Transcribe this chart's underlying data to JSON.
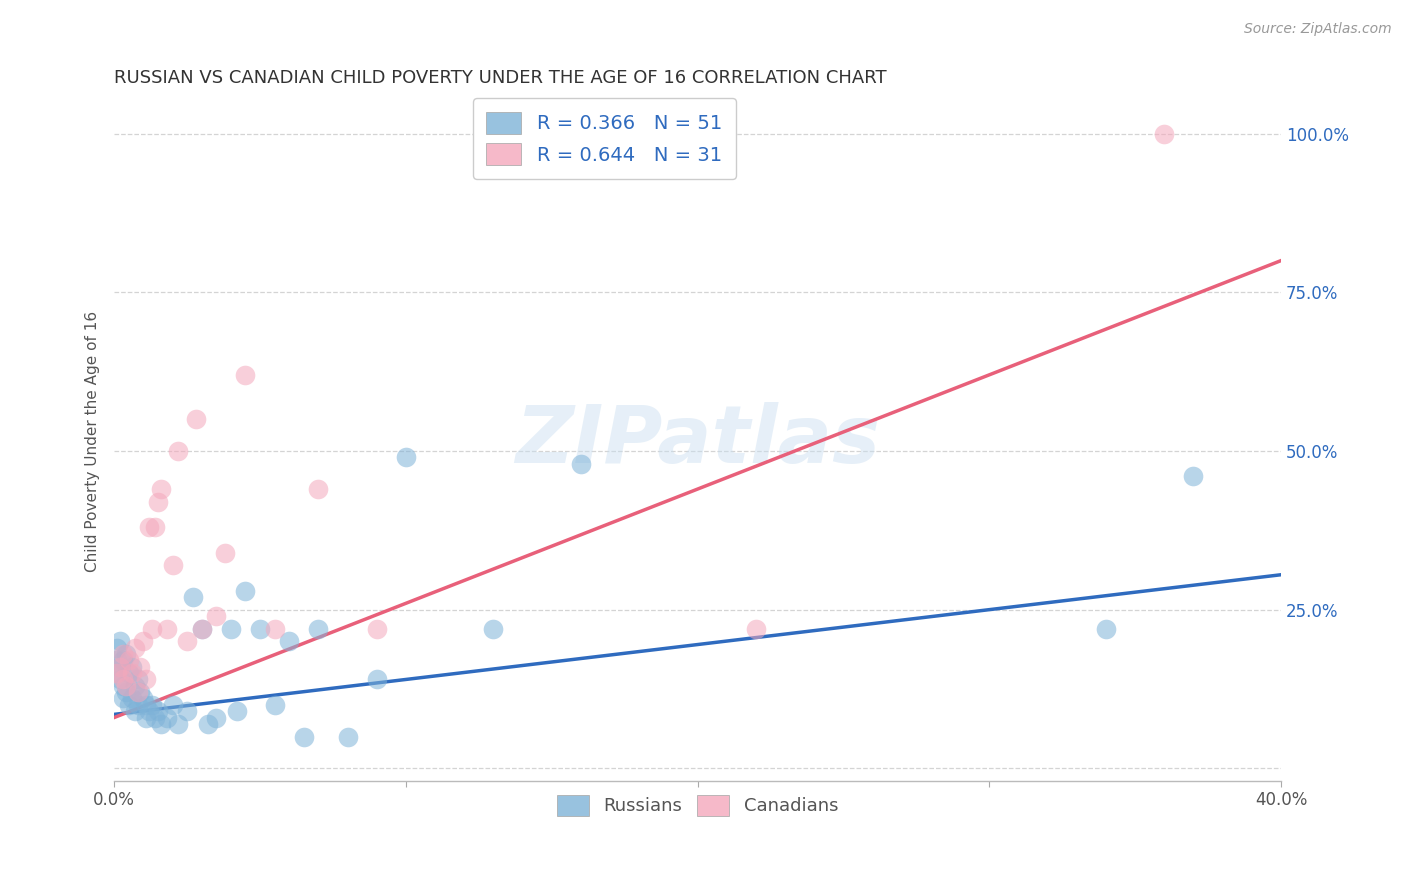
{
  "title": "RUSSIAN VS CANADIAN CHILD POVERTY UNDER THE AGE OF 16 CORRELATION CHART",
  "source": "Source: ZipAtlas.com",
  "ylabel": "Child Poverty Under the Age of 16",
  "xlim": [
    0.0,
    0.4
  ],
  "ylim": [
    -0.02,
    1.05
  ],
  "xticks": [
    0.0,
    0.1,
    0.2,
    0.3,
    0.4
  ],
  "xticklabels": [
    "0.0%",
    "",
    "",
    "",
    "40.0%"
  ],
  "yticks": [
    0.0,
    0.25,
    0.5,
    0.75,
    1.0
  ],
  "yticklabels": [
    "",
    "25.0%",
    "50.0%",
    "75.0%",
    "100.0%"
  ],
  "russian_color": "#7fb3d8",
  "canadian_color": "#f4a8bc",
  "russian_line_color": "#2f6bbf",
  "canadian_line_color": "#e8607a",
  "watermark": "ZIPatlas",
  "background_color": "#ffffff",
  "grid_color": "#d0d0d0",
  "title_fontsize": 13,
  "axis_label_fontsize": 11,
  "tick_fontsize": 12,
  "marker_size": 200,
  "russians_x": [
    0.001,
    0.001,
    0.001,
    0.002,
    0.002,
    0.002,
    0.003,
    0.003,
    0.003,
    0.004,
    0.004,
    0.005,
    0.005,
    0.006,
    0.006,
    0.007,
    0.007,
    0.008,
    0.008,
    0.009,
    0.01,
    0.011,
    0.011,
    0.012,
    0.013,
    0.014,
    0.015,
    0.016,
    0.018,
    0.02,
    0.022,
    0.025,
    0.027,
    0.03,
    0.032,
    0.035,
    0.04,
    0.042,
    0.045,
    0.05,
    0.055,
    0.06,
    0.065,
    0.07,
    0.08,
    0.09,
    0.1,
    0.13,
    0.16,
    0.34,
    0.37
  ],
  "russians_y": [
    0.19,
    0.17,
    0.15,
    0.2,
    0.16,
    0.14,
    0.17,
    0.13,
    0.11,
    0.18,
    0.12,
    0.15,
    0.1,
    0.16,
    0.11,
    0.13,
    0.09,
    0.14,
    0.1,
    0.12,
    0.11,
    0.08,
    0.1,
    0.09,
    0.1,
    0.08,
    0.09,
    0.07,
    0.08,
    0.1,
    0.07,
    0.09,
    0.27,
    0.22,
    0.07,
    0.08,
    0.22,
    0.09,
    0.28,
    0.22,
    0.1,
    0.2,
    0.05,
    0.22,
    0.05,
    0.14,
    0.49,
    0.22,
    0.48,
    0.22,
    0.46
  ],
  "canadians_x": [
    0.001,
    0.002,
    0.003,
    0.003,
    0.004,
    0.005,
    0.006,
    0.007,
    0.008,
    0.009,
    0.01,
    0.011,
    0.012,
    0.013,
    0.014,
    0.015,
    0.016,
    0.018,
    0.02,
    0.022,
    0.025,
    0.028,
    0.03,
    0.035,
    0.038,
    0.045,
    0.055,
    0.07,
    0.09,
    0.22,
    0.36
  ],
  "canadians_y": [
    0.15,
    0.16,
    0.14,
    0.18,
    0.13,
    0.17,
    0.15,
    0.19,
    0.12,
    0.16,
    0.2,
    0.14,
    0.38,
    0.22,
    0.38,
    0.42,
    0.44,
    0.22,
    0.32,
    0.5,
    0.2,
    0.55,
    0.22,
    0.24,
    0.34,
    0.62,
    0.22,
    0.44,
    0.22,
    0.22,
    1.0
  ],
  "russian_line_x": [
    0.0,
    0.4
  ],
  "russian_line_y": [
    0.085,
    0.305
  ],
  "canadian_line_x": [
    0.0,
    0.4
  ],
  "canadian_line_y": [
    0.08,
    0.8
  ]
}
